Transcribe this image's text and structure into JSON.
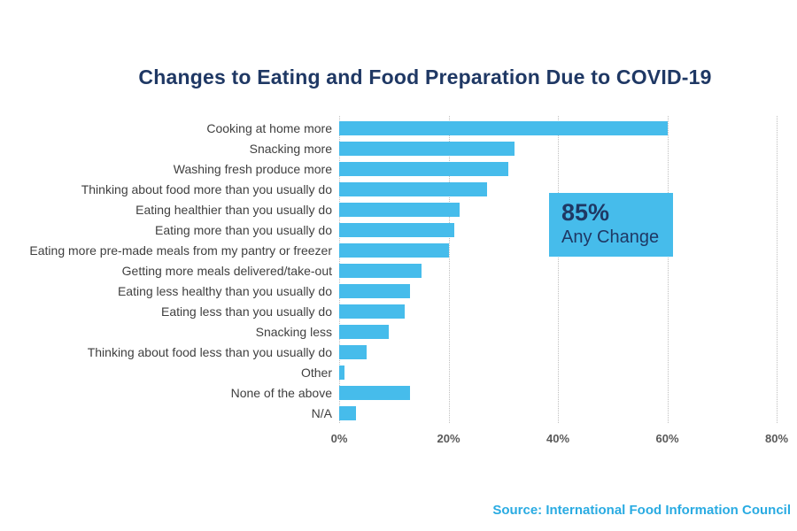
{
  "page": {
    "title": "Changes to Eating and Food Preparation Due to COVID-19",
    "source": "Source: International Food Information Council"
  },
  "callout": {
    "value": "85%",
    "label": "Any Change"
  },
  "colors": {
    "bar": "#46BCEB",
    "title_text": "#1F3864",
    "callout_box": "#46BCEB",
    "callout_text": "#1F3864",
    "source_text": "#29ABE2",
    "axis_tick_text": "#595959",
    "category_text": "#3F3F3F",
    "gridline": "#BFBFBF"
  },
  "chart_data": {
    "type": "bar",
    "orientation": "horizontal",
    "title": "Changes to Eating and Food Preparation Due to COVID-19",
    "categories": [
      "Cooking at home more",
      "Snacking more",
      "Washing fresh produce more",
      "Thinking about food more than you usually do",
      "Eating healthier than you usually do",
      "Eating more than you usually do",
      "Eating more pre-made meals from my pantry or freezer",
      "Getting more meals delivered/take-out",
      "Eating less healthy than you usually do",
      "Eating less than you usually do",
      "Snacking less",
      "Thinking about food less than you usually do",
      "Other",
      "None of the above",
      "N/A"
    ],
    "values": [
      60,
      32,
      31,
      27,
      22,
      21,
      20,
      15,
      13,
      12,
      9,
      5,
      1,
      13,
      3
    ],
    "unit": "%",
    "xlim": [
      0,
      80
    ],
    "x_ticks": [
      "0%",
      "20%",
      "40%",
      "60%",
      "80%"
    ],
    "grid": "vertical-dotted",
    "legend": "none",
    "annotation": {
      "value": "85%",
      "label": "Any Change"
    }
  }
}
